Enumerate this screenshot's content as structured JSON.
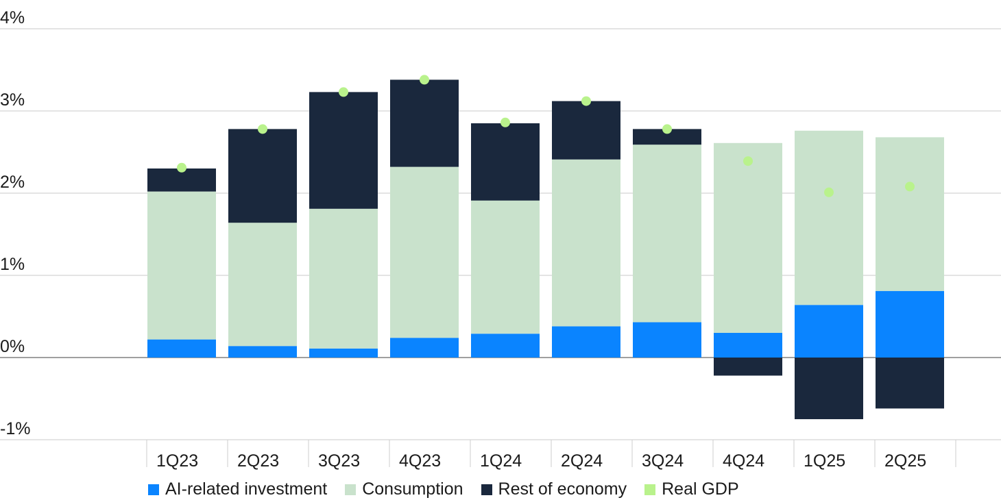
{
  "chart_data": {
    "type": "bar",
    "stacked": true,
    "title": "",
    "xlabel": "",
    "ylabel": "",
    "ylim": [
      -1,
      4
    ],
    "yticks": [
      -1,
      0,
      1,
      2,
      3,
      4
    ],
    "ytick_labels": [
      "-1%",
      "0%",
      "1%",
      "2%",
      "3%",
      "4%"
    ],
    "grid": true,
    "legend_position": "bottom",
    "categories": [
      "1Q23",
      "2Q23",
      "3Q23",
      "4Q23",
      "1Q24",
      "2Q24",
      "3Q24",
      "4Q24",
      "1Q25",
      "2Q25"
    ],
    "series": [
      {
        "name": "AI-related investment",
        "color": "#0a84ff",
        "values": [
          0.22,
          0.14,
          0.11,
          0.24,
          0.29,
          0.38,
          0.43,
          0.3,
          0.64,
          0.81
        ]
      },
      {
        "name": "Consumption",
        "color": "#c9e2cc",
        "values": [
          1.8,
          1.5,
          1.7,
          2.08,
          1.62,
          2.03,
          2.16,
          2.31,
          2.12,
          1.87
        ]
      },
      {
        "name": "Rest of economy",
        "color": "#1a283d",
        "values": [
          0.28,
          1.14,
          1.42,
          1.06,
          0.94,
          0.71,
          0.19,
          -0.22,
          -0.75,
          -0.62
        ]
      },
      {
        "name": "Real GDP",
        "color": "#b9f28c",
        "type": "scatter",
        "values": [
          2.31,
          2.78,
          3.23,
          3.38,
          2.86,
          3.12,
          2.78,
          2.39,
          2.01,
          2.08
        ]
      }
    ]
  }
}
